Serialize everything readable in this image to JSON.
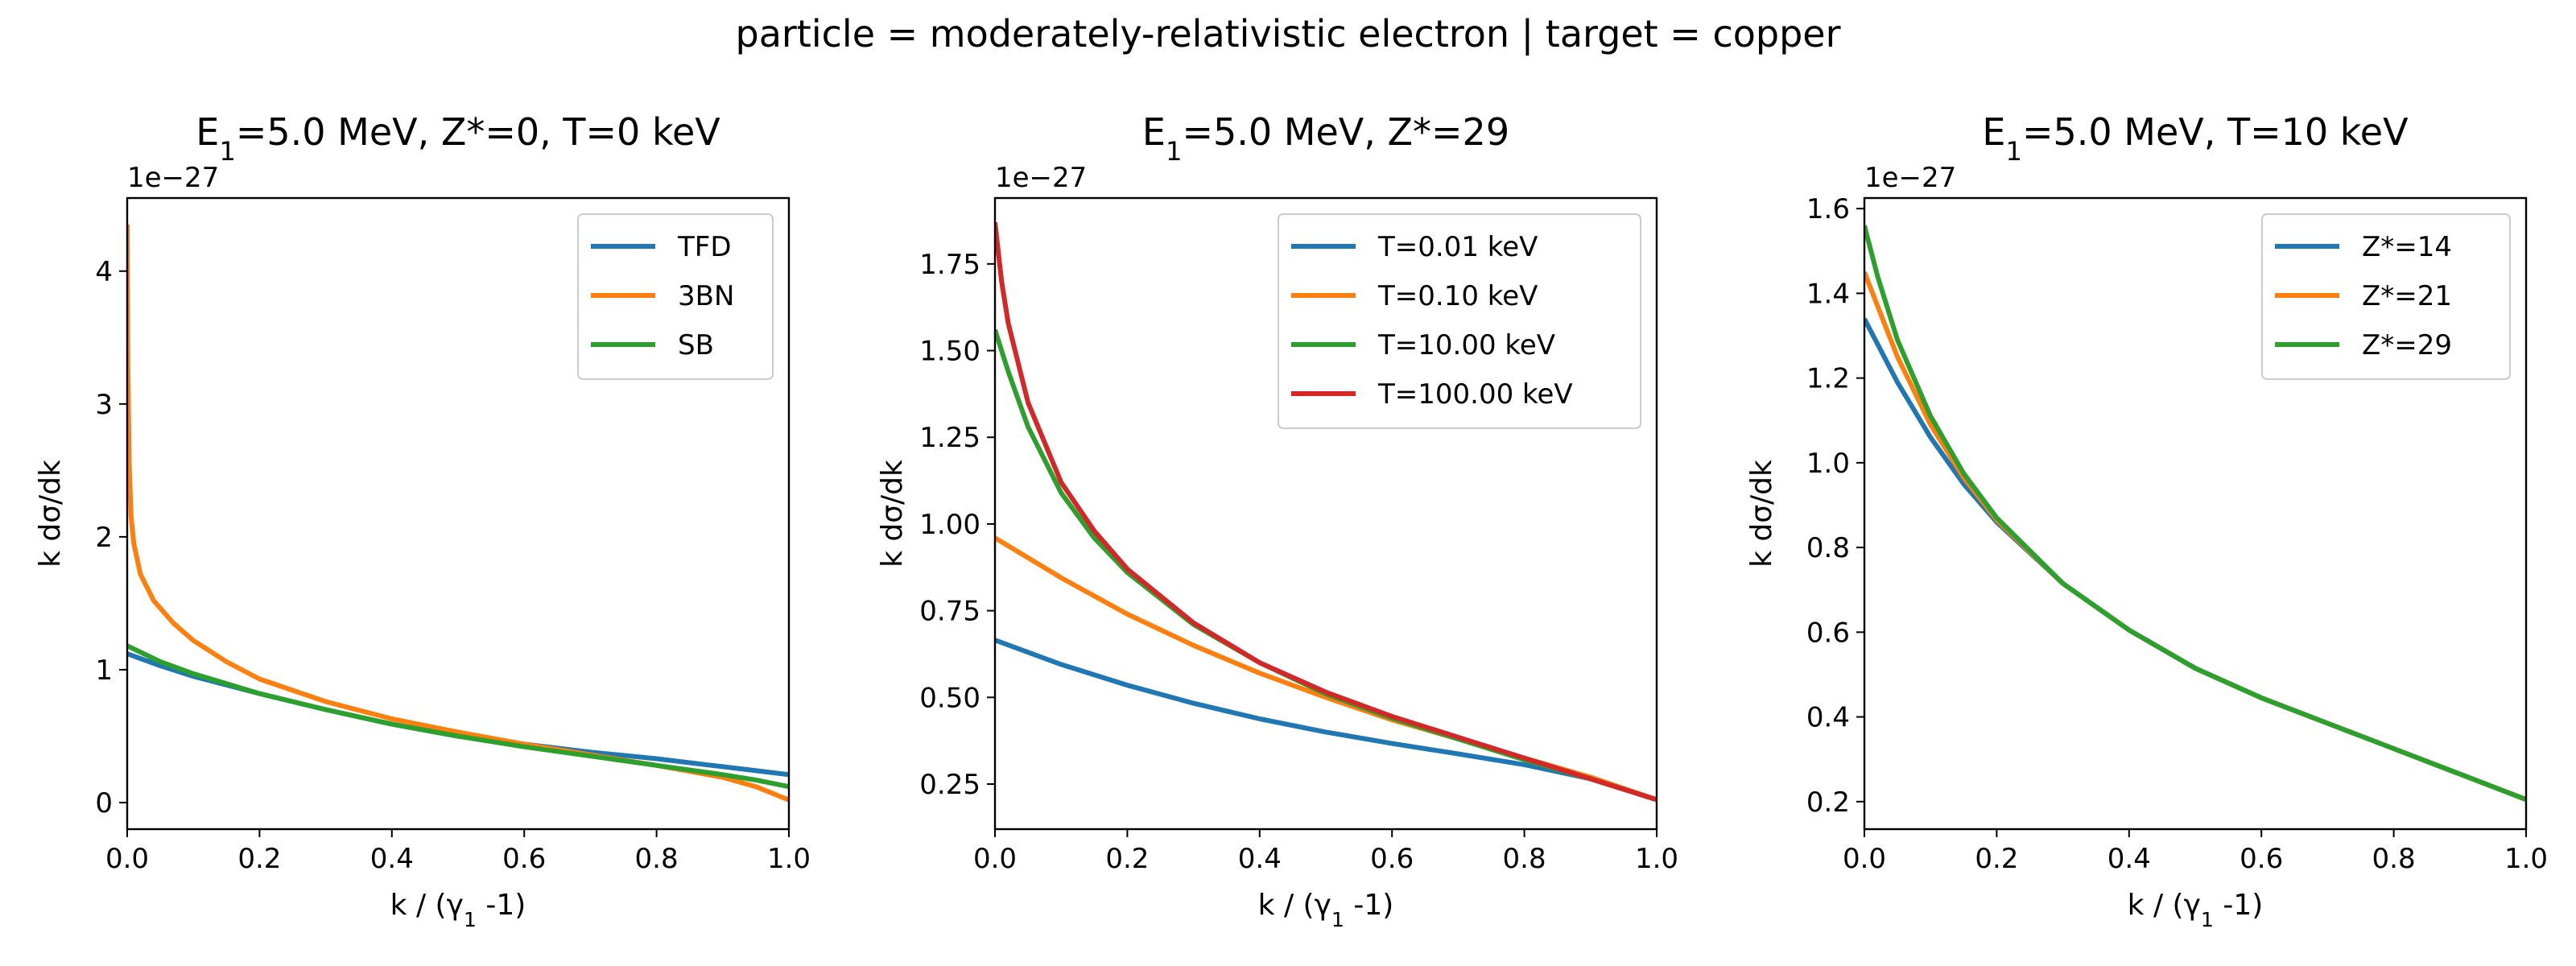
{
  "suptitle": "particle = moderately-relativistic electron | target = copper",
  "colors": {
    "blue": "#1f77b4",
    "orange": "#ff7f0e",
    "green": "#2ca02c",
    "red": "#d62728"
  },
  "chart_data": [
    {
      "type": "line",
      "title": "E₁=5.0 MeV, Z*=0, T=0 keV",
      "xlabel": "k / (γ₁ -1)",
      "ylabel": "k dσ/dk",
      "offset_text": "1e−27",
      "xlim": [
        0,
        1
      ],
      "ylim": [
        -0.2,
        4.55
      ],
      "xticks": [
        0.0,
        0.2,
        0.4,
        0.6,
        0.8,
        1.0
      ],
      "xtick_labels": [
        "0.0",
        "0.2",
        "0.4",
        "0.6",
        "0.8",
        "1.0"
      ],
      "yticks": [
        0,
        1,
        2,
        3,
        4
      ],
      "ytick_labels": [
        "0",
        "1",
        "2",
        "3",
        "4"
      ],
      "legend": "top-right",
      "grid": false,
      "series": [
        {
          "name": "TFD",
          "color": "#1f77b4",
          "x": [
            0,
            0.05,
            0.1,
            0.2,
            0.3,
            0.4,
            0.5,
            0.6,
            0.7,
            0.8,
            0.9,
            1.0
          ],
          "y": [
            1.12,
            1.03,
            0.95,
            0.82,
            0.7,
            0.59,
            0.5,
            0.44,
            0.38,
            0.33,
            0.27,
            0.21
          ]
        },
        {
          "name": "3BN",
          "color": "#ff7f0e",
          "x": [
            0,
            0.001,
            0.003,
            0.006,
            0.01,
            0.02,
            0.04,
            0.07,
            0.1,
            0.15,
            0.2,
            0.3,
            0.4,
            0.5,
            0.6,
            0.7,
            0.8,
            0.9,
            0.95,
            1.0
          ],
          "y": [
            4.35,
            3.3,
            2.55,
            2.15,
            1.95,
            1.72,
            1.52,
            1.35,
            1.22,
            1.06,
            0.93,
            0.76,
            0.63,
            0.53,
            0.44,
            0.36,
            0.28,
            0.19,
            0.12,
            0.02
          ]
        },
        {
          "name": "SB",
          "color": "#2ca02c",
          "x": [
            0,
            0.05,
            0.1,
            0.2,
            0.3,
            0.4,
            0.5,
            0.6,
            0.7,
            0.8,
            0.9,
            0.95,
            1.0
          ],
          "y": [
            1.18,
            1.06,
            0.97,
            0.82,
            0.7,
            0.59,
            0.5,
            0.42,
            0.35,
            0.28,
            0.21,
            0.17,
            0.12
          ]
        }
      ]
    },
    {
      "type": "line",
      "title": "E₁=5.0 MeV, Z*=29",
      "xlabel": "k / (γ₁ -1)",
      "ylabel": "k dσ/dk",
      "offset_text": "1e−27",
      "xlim": [
        0,
        1
      ],
      "ylim": [
        0.12,
        1.94
      ],
      "xticks": [
        0.0,
        0.2,
        0.4,
        0.6,
        0.8,
        1.0
      ],
      "xtick_labels": [
        "0.0",
        "0.2",
        "0.4",
        "0.6",
        "0.8",
        "1.0"
      ],
      "yticks": [
        0.25,
        0.5,
        0.75,
        1.0,
        1.25,
        1.5,
        1.75
      ],
      "ytick_labels": [
        "0.25",
        "0.50",
        "0.75",
        "1.00",
        "1.25",
        "1.50",
        "1.75"
      ],
      "legend": "top-right",
      "grid": false,
      "series": [
        {
          "name": "T=0.01 keV",
          "color": "#1f77b4",
          "x": [
            0,
            0.1,
            0.2,
            0.3,
            0.4,
            0.5,
            0.6,
            0.7,
            0.8,
            0.9,
            1.0
          ],
          "y": [
            0.665,
            0.595,
            0.535,
            0.483,
            0.438,
            0.4,
            0.367,
            0.337,
            0.306,
            0.265,
            0.205
          ]
        },
        {
          "name": "T=0.10 keV",
          "color": "#ff7f0e",
          "x": [
            0,
            0.1,
            0.2,
            0.3,
            0.4,
            0.5,
            0.6,
            0.7,
            0.8,
            0.9,
            1.0
          ],
          "y": [
            0.96,
            0.845,
            0.74,
            0.65,
            0.57,
            0.5,
            0.435,
            0.38,
            0.325,
            0.27,
            0.205
          ]
        },
        {
          "name": "T=10.00 keV",
          "color": "#2ca02c",
          "x": [
            0,
            0.02,
            0.05,
            0.1,
            0.15,
            0.2,
            0.3,
            0.4,
            0.5,
            0.6,
            0.7,
            0.8,
            0.9,
            1.0
          ],
          "y": [
            1.56,
            1.44,
            1.28,
            1.09,
            0.96,
            0.86,
            0.71,
            0.6,
            0.51,
            0.44,
            0.38,
            0.32,
            0.265,
            0.205
          ]
        },
        {
          "name": "T=100.00 keV",
          "color": "#d62728",
          "x": [
            0,
            0.01,
            0.02,
            0.05,
            0.1,
            0.15,
            0.2,
            0.3,
            0.4,
            0.5,
            0.6,
            0.7,
            0.8,
            0.9,
            1.0
          ],
          "y": [
            1.87,
            1.7,
            1.58,
            1.35,
            1.12,
            0.98,
            0.87,
            0.715,
            0.6,
            0.515,
            0.445,
            0.385,
            0.325,
            0.265,
            0.205
          ]
        }
      ]
    },
    {
      "type": "line",
      "title": "E₁=5.0 MeV, T=10 keV",
      "xlabel": "k / (γ₁ -1)",
      "ylabel": "k dσ/dk",
      "offset_text": "1e−27",
      "xlim": [
        0,
        1
      ],
      "ylim": [
        0.135,
        1.625
      ],
      "xticks": [
        0.0,
        0.2,
        0.4,
        0.6,
        0.8,
        1.0
      ],
      "xtick_labels": [
        "0.0",
        "0.2",
        "0.4",
        "0.6",
        "0.8",
        "1.0"
      ],
      "yticks": [
        0.2,
        0.4,
        0.6,
        0.8,
        1.0,
        1.2,
        1.4,
        1.6
      ],
      "ytick_labels": [
        "0.2",
        "0.4",
        "0.6",
        "0.8",
        "1.0",
        "1.2",
        "1.4",
        "1.6"
      ],
      "legend": "top-right",
      "grid": false,
      "series": [
        {
          "name": "Z*=14",
          "color": "#1f77b4",
          "x": [
            0,
            0.05,
            0.1,
            0.15,
            0.2,
            0.3,
            0.4,
            0.5,
            0.6,
            0.7,
            0.8,
            0.9,
            1.0
          ],
          "y": [
            1.34,
            1.19,
            1.06,
            0.95,
            0.86,
            0.715,
            0.605,
            0.515,
            0.445,
            0.385,
            0.325,
            0.265,
            0.205
          ]
        },
        {
          "name": "Z*=21",
          "color": "#ff7f0e",
          "x": [
            0,
            0.05,
            0.1,
            0.15,
            0.2,
            0.3,
            0.4,
            0.5,
            0.6,
            0.7,
            0.8,
            0.9,
            1.0
          ],
          "y": [
            1.45,
            1.25,
            1.09,
            0.965,
            0.865,
            0.715,
            0.605,
            0.515,
            0.445,
            0.385,
            0.325,
            0.265,
            0.205
          ]
        },
        {
          "name": "Z*=29",
          "color": "#2ca02c",
          "x": [
            0,
            0.02,
            0.05,
            0.1,
            0.15,
            0.2,
            0.3,
            0.4,
            0.5,
            0.6,
            0.7,
            0.8,
            0.9,
            1.0
          ],
          "y": [
            1.56,
            1.44,
            1.29,
            1.11,
            0.975,
            0.87,
            0.715,
            0.605,
            0.515,
            0.445,
            0.385,
            0.325,
            0.265,
            0.205
          ]
        }
      ]
    }
  ]
}
